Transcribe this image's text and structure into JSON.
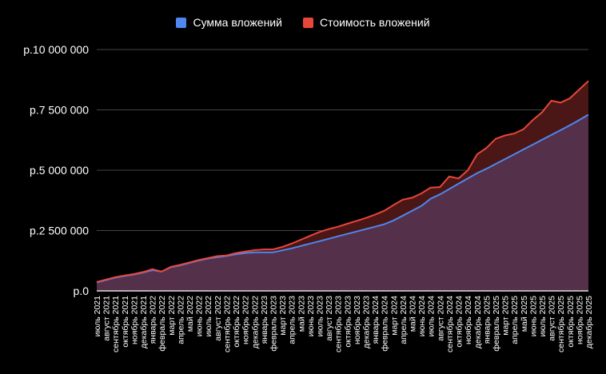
{
  "chart_data": {
    "type": "area",
    "title": "",
    "xlabel": "",
    "ylabel": "",
    "ylim": [
      0,
      10000000
    ],
    "yticks": [
      0,
      2500000,
      5000000,
      7500000,
      10000000
    ],
    "ytick_labels": [
      "р.0",
      "р.2 500 000",
      "р.5 000 000",
      "р.7 500 000",
      "р.10 000 000"
    ],
    "grid": true,
    "legend_position": "top",
    "categories": [
      "июль 2021",
      "август 2021",
      "сентябрь 2021",
      "октябрь 2021",
      "ноябрь 2021",
      "декабрь 2021",
      "январь 2022",
      "февраль 2022",
      "март 2022",
      "апрель 2022",
      "май 2022",
      "июнь 2022",
      "июль 2022",
      "август 2022",
      "сентябрь 2022",
      "октябрь 2022",
      "ноябрь 2022",
      "декабрь 2022",
      "январь 2023",
      "февраль 2023",
      "март 2023",
      "апрель 2023",
      "май 2023",
      "июнь 2023",
      "июль 2023",
      "август 2023",
      "сентябрь 2023",
      "октябрь 2023",
      "ноябрь 2023",
      "декабрь 2023",
      "январь 2024",
      "февраль 2024",
      "март 2024",
      "апрель 2024",
      "май 2024",
      "июнь 2024",
      "июль 2024",
      "август 2024",
      "сентябрь 2024",
      "октябрь 2024",
      "ноябрь 2024",
      "декабрь 2024",
      "январь 2025",
      "февраль 2025",
      "март 2025",
      "апрель 2025",
      "май 2025",
      "июнь 2025",
      "июль 2025",
      "август 2025",
      "сентябрь 2025",
      "октябрь 2025",
      "ноябрь 2025",
      "декабрь 2025"
    ],
    "series": [
      {
        "name": "Сумма вложений",
        "color": "#4f86f0",
        "fill": "#55304a",
        "values": [
          350000,
          450000,
          550000,
          620000,
          680000,
          760000,
          860000,
          800000,
          980000,
          1060000,
          1160000,
          1260000,
          1340000,
          1400000,
          1450000,
          1520000,
          1570000,
          1600000,
          1600000,
          1600000,
          1680000,
          1760000,
          1860000,
          1960000,
          2060000,
          2160000,
          2260000,
          2360000,
          2460000,
          2560000,
          2660000,
          2760000,
          2920000,
          3120000,
          3320000,
          3520000,
          3820000,
          4000000,
          4220000,
          4440000,
          4660000,
          4880000,
          5060000,
          5260000,
          5460000,
          5660000,
          5860000,
          6060000,
          6260000,
          6460000,
          6660000,
          6860000,
          7080000,
          7300000
        ]
      },
      {
        "name": "Стоимость вложений",
        "color": "#e8463a",
        "fill": "#4a1716",
        "values": [
          370000,
          470000,
          570000,
          640000,
          700000,
          780000,
          900000,
          800000,
          1000000,
          1080000,
          1180000,
          1280000,
          1360000,
          1440000,
          1470000,
          1570000,
          1630000,
          1690000,
          1720000,
          1720000,
          1820000,
          1960000,
          2120000,
          2280000,
          2440000,
          2560000,
          2660000,
          2780000,
          2900000,
          3020000,
          3160000,
          3320000,
          3560000,
          3780000,
          3860000,
          4040000,
          4280000,
          4300000,
          4740000,
          4660000,
          5000000,
          5660000,
          5920000,
          6300000,
          6440000,
          6520000,
          6700000,
          7080000,
          7400000,
          7880000,
          7800000,
          7980000,
          8340000,
          8700000
        ]
      }
    ]
  }
}
